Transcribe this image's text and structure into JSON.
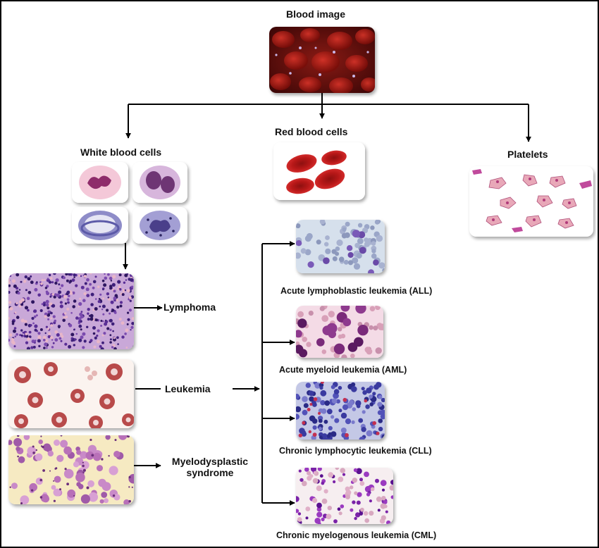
{
  "diagram": {
    "root": {
      "label": "Blood image"
    },
    "branches": {
      "white": {
        "label": "White blood cells"
      },
      "red": {
        "label": "Red blood cells"
      },
      "platelets": {
        "label": "Platelets"
      }
    },
    "disorders": {
      "lymphoma": {
        "label": "Lymphoma"
      },
      "leukemia": {
        "label": "Leukemia"
      },
      "mds": {
        "label_line1": "Myelodysplastic",
        "label_line2": "syndrome"
      }
    },
    "leukemia_types": {
      "all": {
        "label": "Acute lymphoblastic leukemia (ALL)"
      },
      "aml": {
        "label": "Acute myeloid leukemia (AML)"
      },
      "cll": {
        "label": "Chronic lymphocytic leukemia (CLL)"
      },
      "cml": {
        "label": "Chronic myelogenous leukemia (CML)"
      }
    }
  },
  "colors": {
    "arrow": "#000000",
    "blood_dark": "#5a0c0c",
    "rbc": "#c41e1e",
    "stain_purple": "#8a3f9e",
    "stain_pink": "#e9b8d8",
    "platelet": "#d88aa8"
  }
}
